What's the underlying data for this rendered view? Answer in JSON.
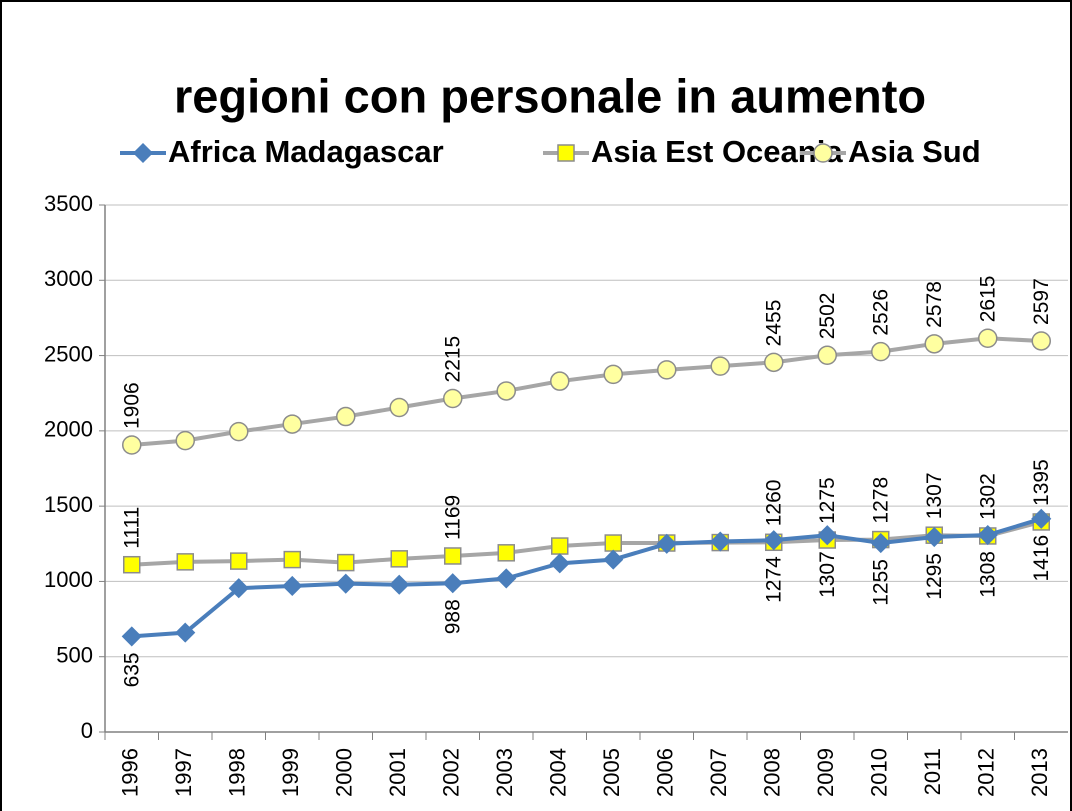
{
  "chart_data": {
    "type": "line",
    "title": "regioni con personale in aumento",
    "categories": [
      "1996",
      "1997",
      "1998",
      "1999",
      "2000",
      "2001",
      "2002",
      "2003",
      "2004",
      "2005",
      "2006",
      "2007",
      "2008",
      "2009",
      "2010",
      "2011",
      "2012",
      "2013"
    ],
    "series": [
      {
        "name": "Africa Madagascar",
        "color": "#4a7ebb",
        "marker": "diamond",
        "marker_fill": "#4a7ebb",
        "label_position": "below",
        "values": [
          635,
          660,
          955,
          970,
          985,
          978,
          988,
          1020,
          1120,
          1145,
          1250,
          1265,
          1274,
          1307,
          1255,
          1295,
          1308,
          1416
        ],
        "value_labels": [
          635,
          null,
          null,
          null,
          null,
          null,
          988,
          null,
          null,
          null,
          null,
          null,
          1274,
          1307,
          1255,
          1295,
          1308,
          1416
        ]
      },
      {
        "name": "Asia Est Oceania",
        "color": "#a6a6a6",
        "marker": "square",
        "marker_fill": "#ffff00",
        "label_position": "above",
        "values": [
          1111,
          1130,
          1135,
          1145,
          1125,
          1150,
          1169,
          1190,
          1235,
          1255,
          1255,
          1258,
          1260,
          1275,
          1278,
          1307,
          1302,
          1395
        ],
        "value_labels": [
          1111,
          null,
          null,
          null,
          null,
          null,
          1169,
          null,
          null,
          null,
          null,
          null,
          1260,
          1275,
          1278,
          1307,
          1302,
          1395
        ]
      },
      {
        "name": "Asia Sud",
        "color": "#a6a6a6",
        "marker": "circle",
        "marker_fill": "#ffffa0",
        "label_position": "above",
        "values": [
          1906,
          1935,
          1995,
          2045,
          2095,
          2155,
          2215,
          2265,
          2330,
          2375,
          2405,
          2430,
          2455,
          2502,
          2526,
          2578,
          2615,
          2597
        ],
        "value_labels": [
          1906,
          null,
          null,
          null,
          null,
          null,
          2215,
          null,
          null,
          null,
          null,
          null,
          2455,
          2502,
          2526,
          2578,
          2615,
          2597
        ]
      }
    ],
    "ylim": [
      0,
      3500
    ],
    "yticks": [
      0,
      500,
      1000,
      1500,
      2000,
      2500,
      3000,
      3500
    ],
    "grid": true
  }
}
